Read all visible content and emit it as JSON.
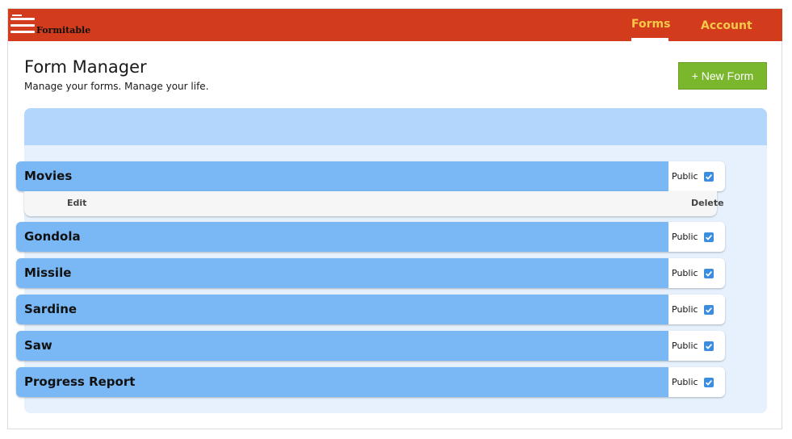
{
  "header": {
    "brand": "Formitable",
    "nav": {
      "forms": "Forms",
      "account": "Account"
    },
    "accent_color": "#d23c1c",
    "nav_color": "#f5c84a"
  },
  "page": {
    "title": "Form Manager",
    "subtitle": "Manage your forms. Manage your life.",
    "new_form_label": "+ New Form"
  },
  "forms": [
    {
      "name": "Movies",
      "public_label": "Public",
      "public": true,
      "expanded": true
    },
    {
      "name": "Gondola",
      "public_label": "Public",
      "public": true
    },
    {
      "name": "Missile",
      "public_label": "Public",
      "public": true
    },
    {
      "name": "Sardine",
      "public_label": "Public",
      "public": true
    },
    {
      "name": "Saw",
      "public_label": "Public",
      "public": true
    },
    {
      "name": "Progress Report",
      "public_label": "Public",
      "public": true
    }
  ],
  "actions": {
    "edit": "Edit",
    "delete": "Delete"
  }
}
